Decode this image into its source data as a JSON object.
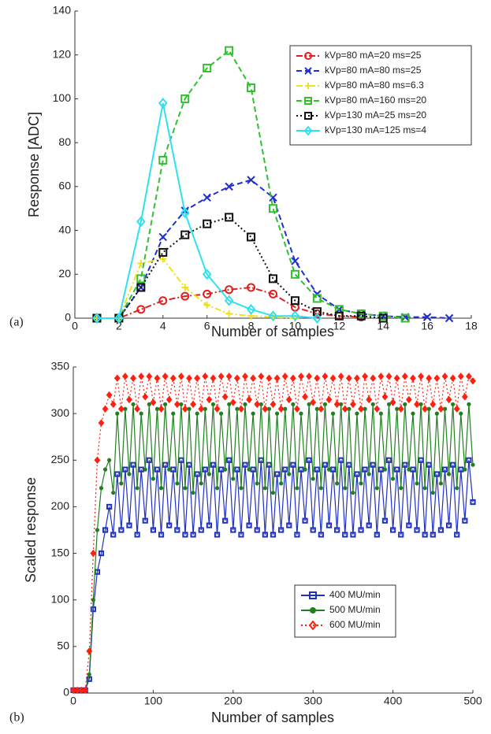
{
  "chart_data": [
    {
      "type": "line",
      "panel_label": "(a)",
      "x_label": "Number of samples",
      "y_label": "Response [ADC]",
      "x": [
        1,
        2,
        3,
        4,
        5,
        6,
        7,
        8,
        9,
        10,
        11,
        12,
        13,
        14,
        15,
        16,
        17
      ],
      "xlim": [
        0,
        18
      ],
      "xticks": [
        0,
        2,
        4,
        6,
        8,
        10,
        12,
        14,
        16,
        18
      ],
      "ylim": [
        0,
        140
      ],
      "yticks": [
        0,
        20,
        40,
        60,
        80,
        100,
        120,
        140
      ],
      "grid": false,
      "legend": "upper right",
      "series": [
        {
          "name": "kVp=80 mA=20 ms=25",
          "color": "#e02020",
          "line_style": "dashdot",
          "marker": "circle",
          "values": [
            0,
            0,
            4,
            8,
            10,
            11,
            13,
            14,
            11,
            5,
            2,
            1,
            0.5,
            null,
            null,
            null,
            null
          ]
        },
        {
          "name": "kVp=80 mA=80 ms=25",
          "color": "#1f2fd0",
          "line_style": "dashed",
          "marker": "x",
          "values": [
            0,
            0,
            14,
            37,
            49,
            55,
            60,
            63,
            55,
            26,
            11,
            4,
            2,
            1,
            0.5,
            0.5,
            0
          ]
        },
        {
          "name": "kVp=80 mA=80 ms=6.3",
          "color": "#f0e020",
          "line_style": "dashdot",
          "marker": "plus",
          "values": [
            0,
            0,
            25,
            27,
            14,
            6,
            2,
            1,
            0.5,
            0,
            null,
            null,
            null,
            null,
            null,
            null,
            null
          ]
        },
        {
          "name": "kVp=80 mA=160 ms=20",
          "color": "#30c030",
          "line_style": "dashed",
          "marker": "square",
          "values": [
            0,
            0,
            18,
            72,
            100,
            114,
            122,
            105,
            50,
            20,
            9,
            4,
            2,
            1,
            0,
            null,
            null
          ]
        },
        {
          "name": "kVp=130 mA=25 ms=20",
          "color": "#111111",
          "line_style": "dotted",
          "marker": "square",
          "values": [
            0,
            0,
            14,
            30,
            38,
            43,
            46,
            37,
            18,
            8,
            3,
            1,
            1,
            0,
            null,
            null,
            null
          ]
        },
        {
          "name": "kVp=130 mA=125 ms=4",
          "color": "#30e0f0",
          "line_style": "solid",
          "marker": "diamond",
          "values": [
            0,
            0,
            44,
            98,
            48,
            20,
            8,
            4,
            1,
            1,
            0,
            null,
            null,
            null,
            null,
            null,
            null
          ]
        }
      ]
    },
    {
      "type": "line",
      "panel_label": "(b)",
      "x_label": "Number of samples",
      "y_label": "Scaled response",
      "x": [
        0,
        5,
        10,
        15,
        20,
        25,
        30,
        35,
        40,
        45,
        50,
        55,
        60,
        65,
        70,
        75,
        80,
        85,
        90,
        95,
        100,
        105,
        110,
        115,
        120,
        125,
        130,
        135,
        140,
        145,
        150,
        155,
        160,
        165,
        170,
        175,
        180,
        185,
        190,
        195,
        200,
        205,
        210,
        215,
        220,
        225,
        230,
        235,
        240,
        245,
        250,
        255,
        260,
        265,
        270,
        275,
        280,
        285,
        290,
        295,
        300,
        305,
        310,
        315,
        320,
        325,
        330,
        335,
        340,
        345,
        350,
        355,
        360,
        365,
        370,
        375,
        380,
        385,
        390,
        395,
        400,
        405,
        410,
        415,
        420,
        425,
        430,
        435,
        440,
        445,
        450,
        455,
        460,
        465,
        470,
        475,
        480,
        485,
        490,
        495,
        500
      ],
      "xlim": [
        0,
        500
      ],
      "xticks": [
        0,
        100,
        200,
        300,
        400,
        500
      ],
      "ylim": [
        0,
        350
      ],
      "yticks": [
        0,
        50,
        100,
        150,
        200,
        250,
        300,
        350
      ],
      "grid": false,
      "legend": "lower right",
      "series": [
        {
          "name": "400 MU/min",
          "color": "#2030c0",
          "line_style": "solid",
          "marker": "square",
          "values": [
            3,
            3,
            3,
            3,
            15,
            90,
            130,
            150,
            175,
            200,
            170,
            235,
            175,
            240,
            180,
            245,
            170,
            240,
            185,
            250,
            175,
            240,
            170,
            245,
            180,
            240,
            175,
            250,
            170,
            245,
            170,
            235,
            175,
            240,
            180,
            245,
            170,
            240,
            185,
            250,
            175,
            240,
            170,
            245,
            180,
            240,
            175,
            250,
            170,
            245,
            170,
            235,
            175,
            240,
            180,
            245,
            170,
            240,
            185,
            250,
            175,
            240,
            170,
            245,
            180,
            240,
            175,
            250,
            170,
            245,
            170,
            235,
            175,
            240,
            180,
            245,
            170,
            240,
            185,
            250,
            175,
            240,
            170,
            245,
            180,
            240,
            175,
            250,
            170,
            245,
            170,
            235,
            175,
            240,
            180,
            245,
            170,
            240,
            185,
            250,
            205
          ]
        },
        {
          "name": "500 MU/min",
          "color": "#208020",
          "line_style": "solid",
          "marker": "dot",
          "values": [
            3,
            3,
            3,
            3,
            20,
            100,
            175,
            220,
            240,
            250,
            215,
            300,
            225,
            305,
            235,
            310,
            220,
            300,
            240,
            310,
            230,
            305,
            220,
            310,
            240,
            300,
            225,
            310,
            220,
            305,
            215,
            300,
            225,
            305,
            235,
            310,
            220,
            300,
            240,
            310,
            230,
            305,
            220,
            310,
            240,
            300,
            225,
            310,
            220,
            305,
            215,
            300,
            225,
            305,
            235,
            310,
            220,
            300,
            240,
            310,
            230,
            305,
            220,
            310,
            240,
            300,
            225,
            310,
            220,
            305,
            215,
            300,
            225,
            305,
            235,
            310,
            220,
            300,
            240,
            310,
            230,
            305,
            220,
            310,
            240,
            300,
            225,
            310,
            220,
            305,
            215,
            300,
            225,
            305,
            235,
            310,
            220,
            300,
            240,
            310,
            245
          ]
        },
        {
          "name": "600 MU/min",
          "color": "#ff2010",
          "line_style": "dotted",
          "marker": "diamond",
          "values": [
            3,
            3,
            3,
            3,
            45,
            150,
            250,
            290,
            305,
            320,
            310,
            338,
            305,
            340,
            315,
            338,
            305,
            340,
            318,
            340,
            312,
            338,
            305,
            340,
            315,
            338,
            310,
            340,
            305,
            338,
            310,
            338,
            305,
            340,
            315,
            338,
            305,
            340,
            318,
            340,
            312,
            338,
            305,
            340,
            315,
            338,
            310,
            340,
            305,
            338,
            310,
            338,
            305,
            340,
            315,
            338,
            305,
            340,
            318,
            340,
            312,
            338,
            305,
            340,
            315,
            338,
            310,
            340,
            305,
            338,
            310,
            338,
            305,
            340,
            315,
            338,
            305,
            340,
            318,
            340,
            312,
            338,
            305,
            340,
            315,
            338,
            310,
            340,
            305,
            338,
            310,
            338,
            305,
            340,
            315,
            338,
            305,
            340,
            318,
            340,
            335
          ]
        }
      ]
    }
  ]
}
